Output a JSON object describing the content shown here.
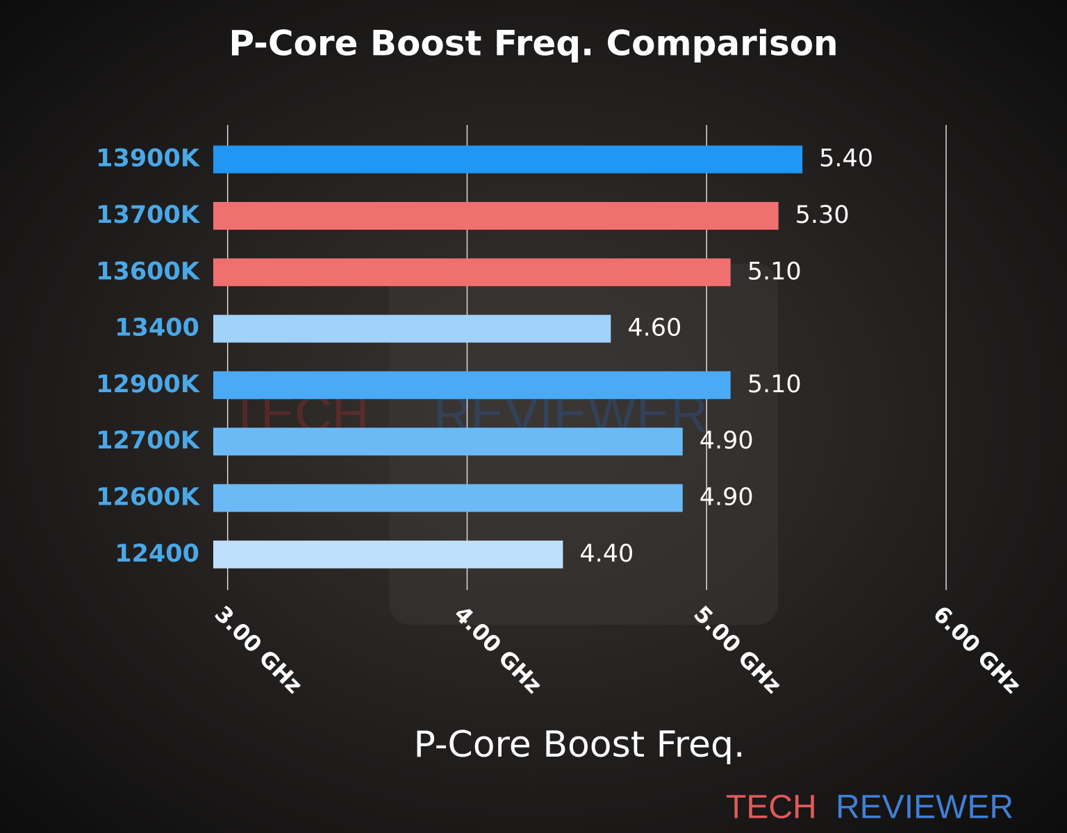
{
  "chart_data": {
    "type": "bar",
    "orientation": "horizontal",
    "title": "P-Core Boost Freq. Comparison",
    "x_label": "P-Core Boost Freq.",
    "categories": [
      "13900K",
      "13700K",
      "13600K",
      "13400",
      "12900K",
      "12700K",
      "12600K",
      "12400"
    ],
    "values": [
      5.4,
      5.3,
      5.1,
      4.6,
      5.1,
      4.9,
      4.9,
      4.4
    ],
    "value_labels": [
      "5.40",
      "5.30",
      "5.10",
      "4.60",
      "5.10",
      "4.90",
      "4.90",
      "4.40"
    ],
    "colors": [
      "#2196f3",
      "#f07070",
      "#f07070",
      "#a0d2fa",
      "#4aaaf5",
      "#6cbaf5",
      "#6cbaf5",
      "#bfe0fc"
    ],
    "xlim": [
      2.94,
      6.0
    ],
    "xticks": [
      {
        "value": 3,
        "label": "3.00 GHz"
      },
      {
        "value": 4,
        "label": "4.00 GHz"
      },
      {
        "value": 5,
        "label": "5.00 GHz"
      },
      {
        "value": 6,
        "label": "6.00 GHz"
      }
    ],
    "grid": true,
    "watermark": {
      "part1": "TECH",
      "part2": "REVIEWER"
    }
  }
}
